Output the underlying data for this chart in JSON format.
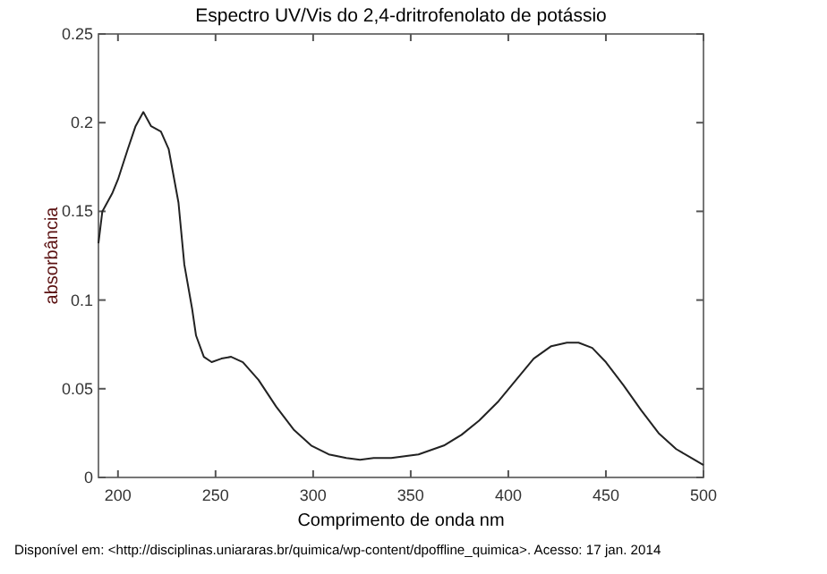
{
  "chart_data": {
    "type": "line",
    "title": "Espectro UV/Vis do 2,4-dritrofenolato de potássio",
    "xlabel": "Comprimento de onda nm",
    "ylabel": "absorbância",
    "annotations": [
      "Disponível em: <http://disciplinas.uniararas.br/quimica/wp-content/dpoffline_quimica>. Acesso: 17 jan. 2014"
    ],
    "xlim": [
      190,
      500
    ],
    "xticks": [
      200,
      250,
      300,
      350,
      400,
      450,
      500
    ],
    "ylim": [
      0,
      0.25
    ],
    "yticks": [
      0,
      0.05,
      0.1,
      0.15,
      0.2,
      0.25
    ],
    "grid": false,
    "marker": "none",
    "line_style": "solid",
    "series": [
      {
        "color": "#222222",
        "x": [
          190,
          192,
          197,
          200,
          205,
          209,
          213,
          217,
          222,
          226,
          231,
          234,
          238,
          240,
          244,
          248,
          253,
          258,
          264,
          272,
          281,
          290,
          299,
          308,
          317,
          324,
          331,
          340,
          354,
          367,
          376,
          385,
          395,
          404,
          413,
          422,
          430,
          436,
          443,
          450,
          459,
          468,
          477,
          486,
          500
        ],
        "values": [
          0.132,
          0.15,
          0.16,
          0.168,
          0.185,
          0.198,
          0.206,
          0.198,
          0.195,
          0.185,
          0.155,
          0.12,
          0.095,
          0.08,
          0.068,
          0.065,
          0.067,
          0.068,
          0.065,
          0.055,
          0.04,
          0.027,
          0.018,
          0.013,
          0.011,
          0.01,
          0.011,
          0.011,
          0.013,
          0.018,
          0.024,
          0.032,
          0.043,
          0.055,
          0.067,
          0.074,
          0.076,
          0.076,
          0.073,
          0.065,
          0.052,
          0.038,
          0.025,
          0.016,
          0.007
        ]
      }
    ]
  }
}
